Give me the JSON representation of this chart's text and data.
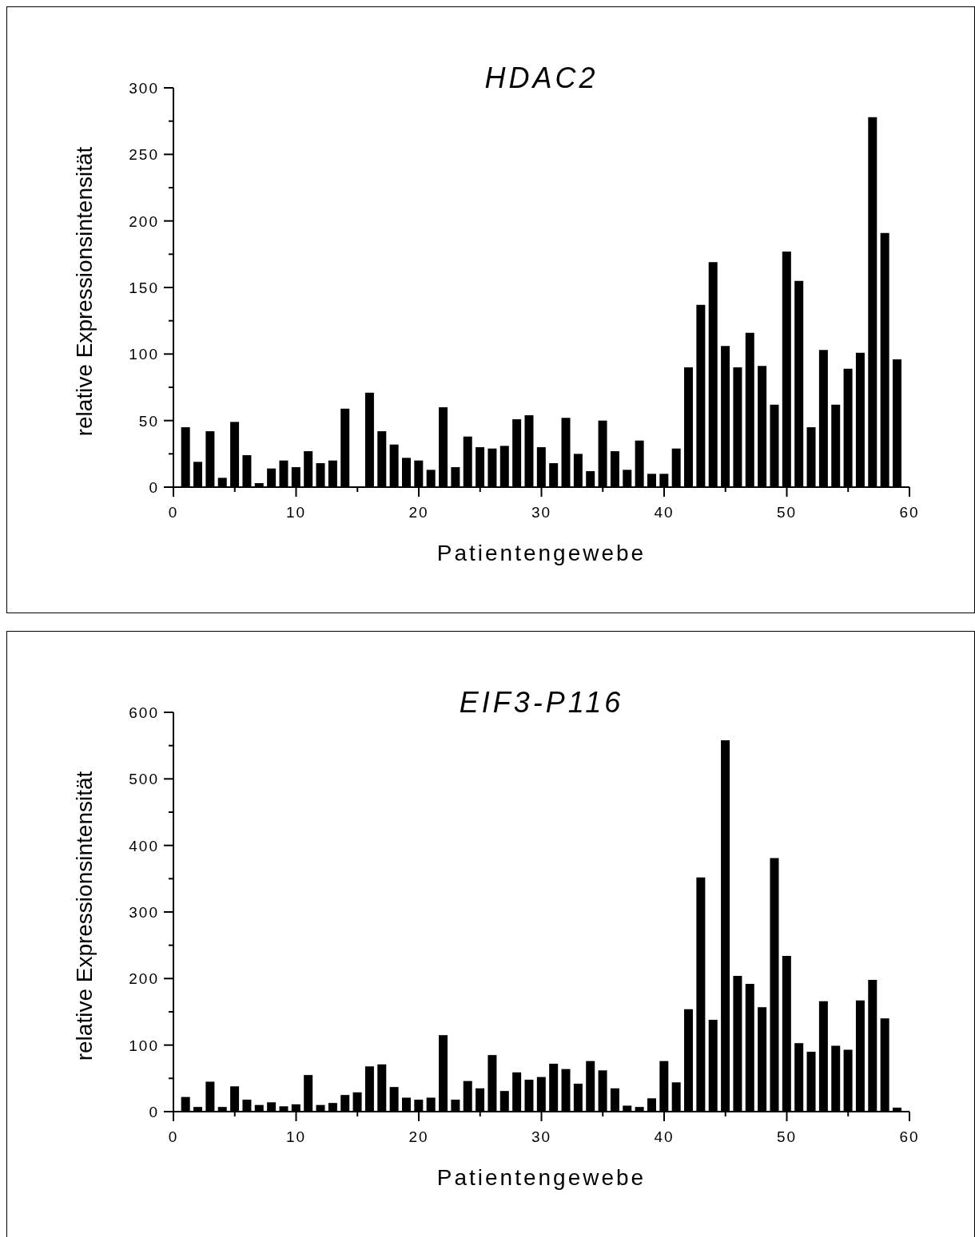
{
  "chart_data": [
    {
      "type": "bar",
      "title": "HDAC2",
      "xlabel": "Patientengewebe",
      "ylabel": "relative Expressionsintensität",
      "x": [
        1,
        2,
        3,
        4,
        5,
        6,
        7,
        8,
        9,
        10,
        11,
        12,
        13,
        14,
        15,
        16,
        17,
        18,
        19,
        20,
        21,
        22,
        23,
        24,
        25,
        26,
        27,
        28,
        29,
        30,
        31,
        32,
        33,
        34,
        35,
        36,
        37,
        38,
        39,
        40,
        41,
        42,
        43,
        44,
        45,
        46,
        47,
        48,
        49,
        50,
        51,
        52,
        53,
        54,
        55,
        56,
        57,
        58,
        59
      ],
      "values": [
        45,
        19,
        42,
        7,
        49,
        24,
        3,
        14,
        20,
        15,
        27,
        18,
        20,
        59,
        0,
        71,
        42,
        32,
        22,
        20,
        13,
        60,
        15,
        38,
        30,
        29,
        31,
        51,
        54,
        30,
        18,
        52,
        25,
        12,
        50,
        27,
        13,
        35,
        10,
        10,
        29,
        90,
        137,
        169,
        106,
        90,
        116,
        91,
        62,
        177,
        155,
        45,
        103,
        62,
        89,
        101,
        278,
        191,
        96
      ],
      "color": "#000000",
      "xlim": [
        0,
        60
      ],
      "xticks": [
        0,
        {
          "value": 5,
          "label": null
        },
        10,
        {
          "value": 15,
          "label": null
        },
        20,
        {
          "value": 25,
          "label": null
        },
        30,
        {
          "value": 35,
          "label": null
        },
        40,
        {
          "value": 45,
          "label": null
        },
        50,
        {
          "value": 55,
          "label": null
        },
        60
      ],
      "ylim": [
        0,
        300
      ],
      "yticks": [
        0,
        {
          "value": 25,
          "label": null
        },
        50,
        {
          "value": 75,
          "label": null
        },
        100,
        {
          "value": 125,
          "label": null
        },
        150,
        {
          "value": 175,
          "label": null
        },
        200,
        {
          "value": 225,
          "label": null
        },
        250,
        {
          "value": 275,
          "label": null
        },
        300
      ]
    },
    {
      "type": "bar",
      "title": "EIF3-P116",
      "xlabel": "Patientengewebe",
      "ylabel": "relative Expressionsintensität",
      "x": [
        1,
        2,
        3,
        4,
        5,
        6,
        7,
        8,
        9,
        10,
        11,
        12,
        13,
        14,
        15,
        16,
        17,
        18,
        19,
        20,
        21,
        22,
        23,
        24,
        25,
        26,
        27,
        28,
        29,
        30,
        31,
        32,
        33,
        34,
        35,
        36,
        37,
        38,
        39,
        40,
        41,
        42,
        43,
        44,
        45,
        46,
        47,
        48,
        49,
        50,
        51,
        52,
        53,
        54,
        55,
        56,
        57,
        58,
        59
      ],
      "values": [
        22,
        7,
        45,
        7,
        38,
        18,
        10,
        14,
        8,
        11,
        55,
        10,
        13,
        25,
        29,
        68,
        71,
        37,
        21,
        18,
        21,
        115,
        18,
        46,
        35,
        85,
        31,
        59,
        48,
        52,
        72,
        64,
        42,
        76,
        62,
        35,
        9,
        7,
        20,
        76,
        44,
        154,
        352,
        138,
        558,
        204,
        192,
        157,
        381,
        234,
        103,
        90,
        166,
        99,
        93,
        167,
        198,
        140,
        6
      ],
      "color": "#000000",
      "xlim": [
        0,
        60
      ],
      "xticks": [
        0,
        {
          "value": 5,
          "label": null
        },
        10,
        {
          "value": 15,
          "label": null
        },
        20,
        {
          "value": 25,
          "label": null
        },
        30,
        {
          "value": 35,
          "label": null
        },
        40,
        {
          "value": 45,
          "label": null
        },
        50,
        {
          "value": 55,
          "label": null
        },
        60
      ],
      "ylim": [
        0,
        600
      ],
      "yticks": [
        0,
        {
          "value": 50,
          "label": null
        },
        100,
        {
          "value": 150,
          "label": null
        },
        200,
        {
          "value": 250,
          "label": null
        },
        300,
        {
          "value": 350,
          "label": null
        },
        400,
        {
          "value": 450,
          "label": null
        },
        500,
        {
          "value": 550,
          "label": null
        },
        600
      ]
    }
  ]
}
